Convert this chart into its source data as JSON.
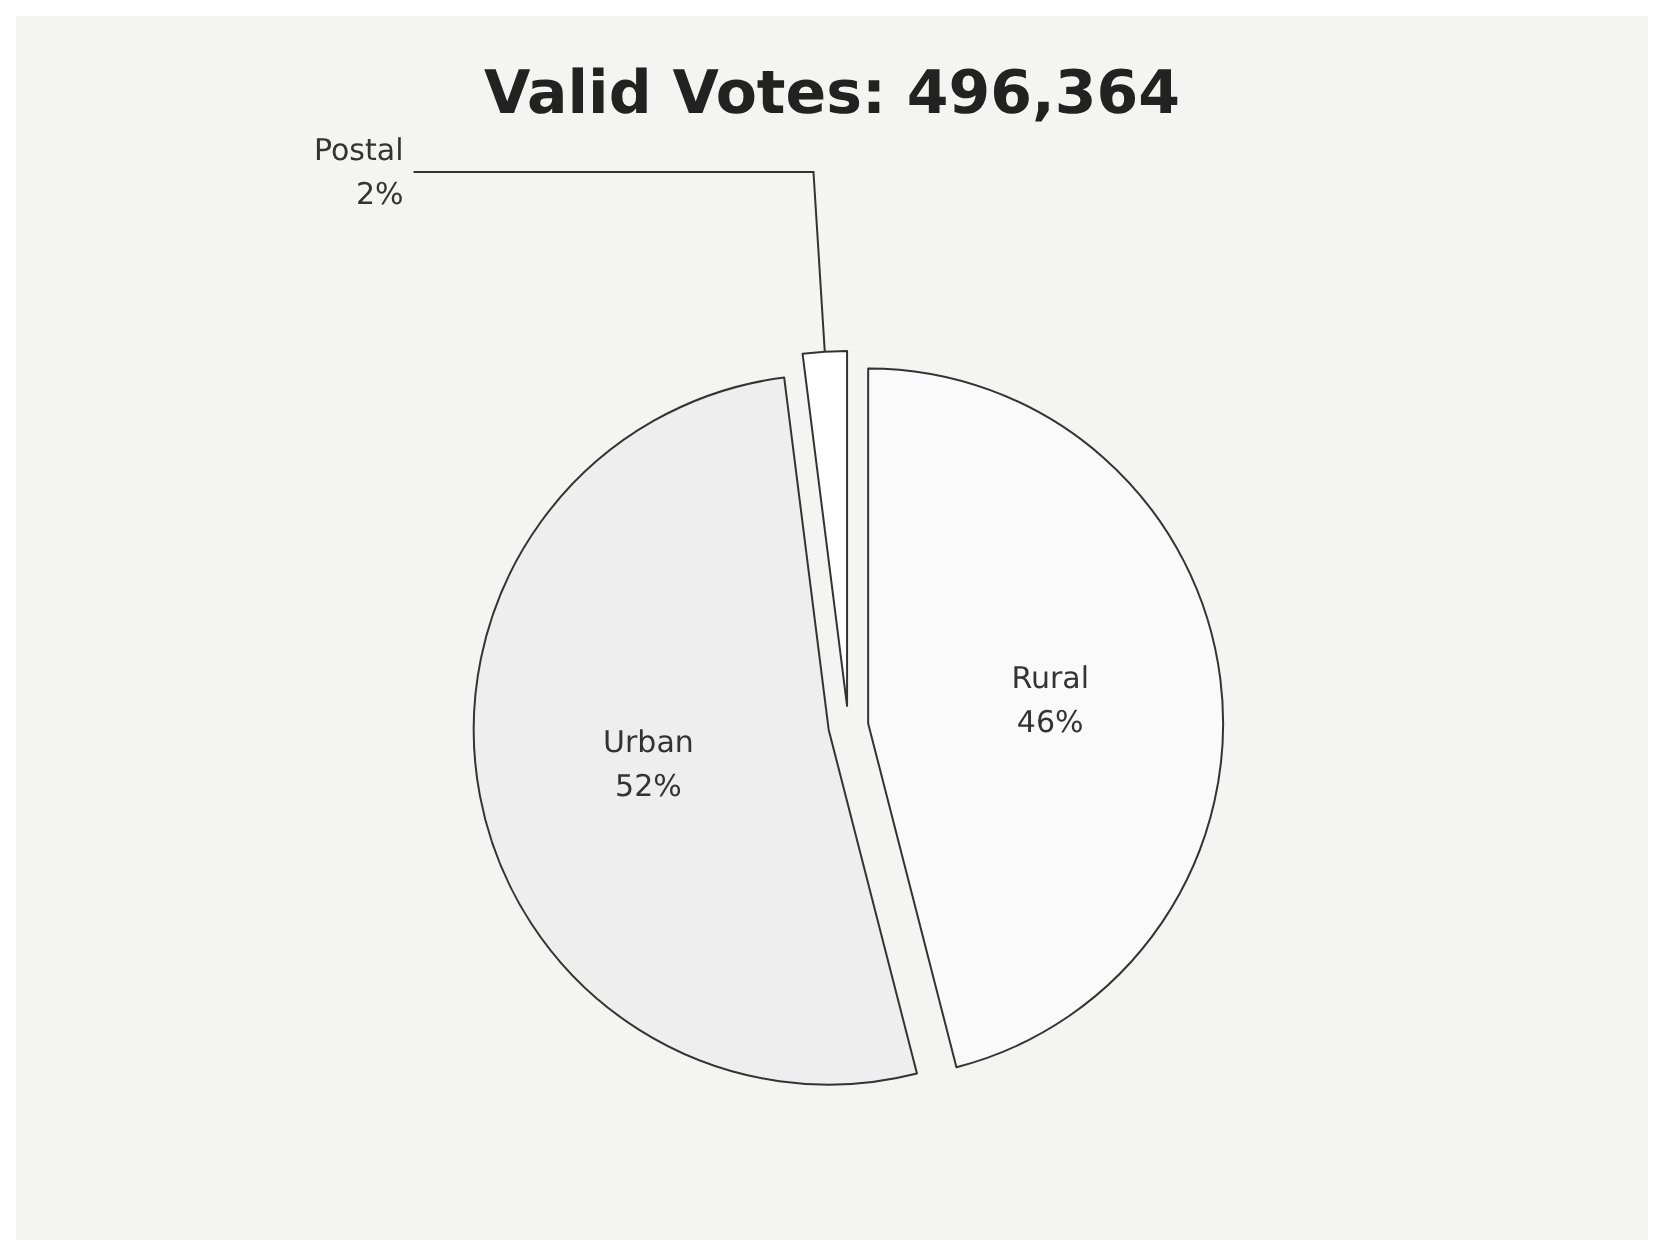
{
  "chart_data": {
    "type": "pie",
    "title": "Valid Votes: 496,364",
    "categories": [
      "Rural",
      "Urban",
      "Postal"
    ],
    "values": [
      46,
      52,
      2
    ],
    "colors": [
      "#fafafa",
      "#eeeeee",
      "#ffffff"
    ],
    "value_labels": [
      "46%",
      "52%",
      "2%"
    ],
    "legend": false
  }
}
